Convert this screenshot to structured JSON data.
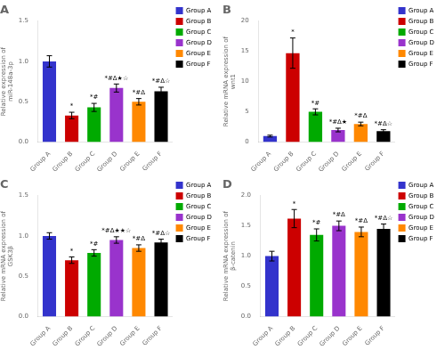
{
  "chart_data": [
    {
      "type": "bar",
      "title": "A",
      "y_label": "Relative expression of\nmiR-148a-3p",
      "categories": [
        "Group A",
        "Group B",
        "Group C",
        "Group D",
        "Group E",
        "Group F"
      ],
      "values": [
        1.0,
        0.33,
        0.43,
        0.67,
        0.5,
        0.63
      ],
      "errors": [
        0.07,
        0.04,
        0.05,
        0.05,
        0.04,
        0.05
      ],
      "colors": [
        "#3333cc",
        "#cc0000",
        "#00aa00",
        "#9933cc",
        "#ff8800",
        "#000000"
      ],
      "ylim": [
        0,
        1.5
      ],
      "yticks": [
        {
          "value": 0,
          "label": "0.0"
        },
        0.5,
        {
          "value": 1,
          "label": "1.0"
        },
        1.5
      ],
      "annotations": [
        {
          "category": "Group B",
          "text": "*"
        },
        {
          "category": "Group C",
          "text": "*#"
        },
        {
          "category": "Group D",
          "text": "*#Δ★☆"
        },
        {
          "category": "Group E",
          "text": "*#Δ"
        },
        {
          "category": "Group F",
          "text": "*#Δ☆"
        }
      ],
      "legend": "right",
      "grid": false
    },
    {
      "type": "bar",
      "title": "B",
      "y_label": "Relative mRNA expression of\nwnt1",
      "categories": [
        "Group A",
        "Group B",
        "Group C",
        "Group D",
        "Group E",
        "Group F"
      ],
      "values": [
        1.0,
        14.7,
        5.0,
        2.0,
        3.0,
        1.8
      ],
      "errors": [
        0.15,
        2.5,
        0.5,
        0.3,
        0.3,
        0.25
      ],
      "colors": [
        "#3333cc",
        "#cc0000",
        "#00aa00",
        "#9933cc",
        "#ff8800",
        "#000000"
      ],
      "ylim": [
        0,
        20
      ],
      "yticks": [
        0,
        5,
        10,
        15,
        20
      ],
      "annotations": [
        {
          "category": "Group B",
          "text": "*"
        },
        {
          "category": "Group C",
          "text": "*#"
        },
        {
          "category": "Group D",
          "text": "*#Δ★"
        },
        {
          "category": "Group E",
          "text": "*#Δ"
        },
        {
          "category": "Group F",
          "text": "*#Δ☆"
        }
      ],
      "legend": "right",
      "grid": false
    },
    {
      "type": "bar",
      "title": "C",
      "y_label": "Relative mRNA expression of\nGSK3β",
      "categories": [
        "Group A",
        "Group B",
        "Group C",
        "Group D",
        "Group E",
        "Group F"
      ],
      "values": [
        1.0,
        0.7,
        0.79,
        0.95,
        0.85,
        0.92
      ],
      "errors": [
        0.04,
        0.04,
        0.04,
        0.04,
        0.04,
        0.04
      ],
      "colors": [
        "#3333cc",
        "#cc0000",
        "#00aa00",
        "#9933cc",
        "#ff8800",
        "#000000"
      ],
      "ylim": [
        0,
        1.5
      ],
      "yticks": [
        {
          "value": 0,
          "label": "0.0"
        },
        0.5,
        {
          "value": 1,
          "label": "1.0"
        },
        1.5
      ],
      "annotations": [
        {
          "category": "Group B",
          "text": "*"
        },
        {
          "category": "Group C",
          "text": "*#"
        },
        {
          "category": "Group D",
          "text": "*#Δ★★☆"
        },
        {
          "category": "Group E",
          "text": "*#Δ"
        },
        {
          "category": "Group F",
          "text": "*#Δ☆"
        }
      ],
      "legend": "right",
      "grid": false
    },
    {
      "type": "bar",
      "title": "D",
      "y_label": "Relative mRNA expression of\nβ-catenin",
      "categories": [
        "Group A",
        "Group B",
        "Group C",
        "Group D",
        "Group E",
        "Group F"
      ],
      "values": [
        1.0,
        1.62,
        1.35,
        1.5,
        1.4,
        1.45
      ],
      "errors": [
        0.08,
        0.15,
        0.1,
        0.08,
        0.08,
        0.08
      ],
      "colors": [
        "#3333cc",
        "#cc0000",
        "#00aa00",
        "#9933cc",
        "#ff8800",
        "#000000"
      ],
      "ylim": [
        0,
        2.0
      ],
      "yticks": [
        {
          "value": 0,
          "label": "0.0"
        },
        0.5,
        {
          "value": 1,
          "label": "1.0"
        },
        1.5,
        {
          "value": 2,
          "label": "2.0"
        }
      ],
      "annotations": [
        {
          "category": "Group B",
          "text": "*"
        },
        {
          "category": "Group C",
          "text": "*#"
        },
        {
          "category": "Group D",
          "text": "*#Δ"
        },
        {
          "category": "Group E",
          "text": "*#Δ"
        },
        {
          "category": "Group F",
          "text": "*#Δ☆"
        }
      ],
      "legend": "right",
      "grid": false
    }
  ]
}
